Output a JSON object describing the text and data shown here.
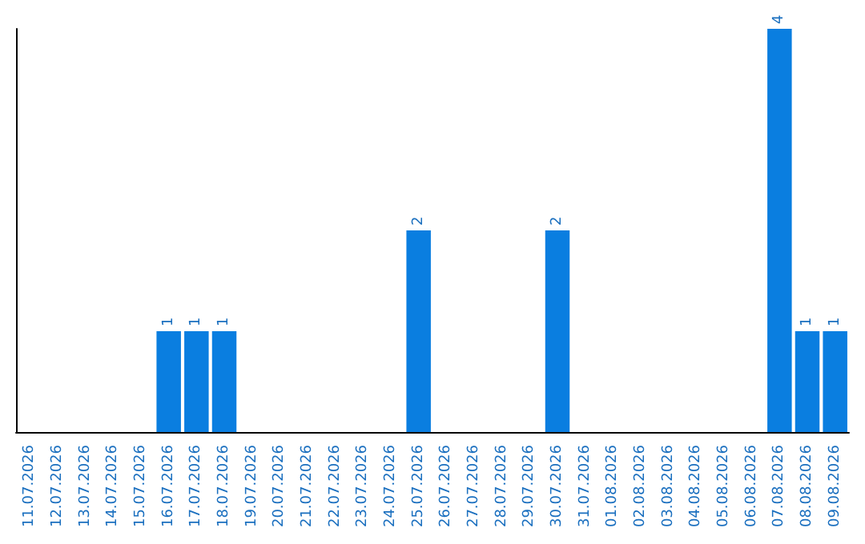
{
  "chart_data": {
    "type": "bar",
    "categories": [
      "11.07.2026",
      "12.07.2026",
      "13.07.2026",
      "14.07.2026",
      "15.07.2026",
      "16.07.2026",
      "17.07.2026",
      "18.07.2026",
      "19.07.2026",
      "20.07.2026",
      "21.07.2026",
      "22.07.2026",
      "23.07.2026",
      "24.07.2026",
      "25.07.2026",
      "26.07.2026",
      "27.07.2026",
      "28.07.2026",
      "29.07.2026",
      "30.07.2026",
      "31.07.2026",
      "01.08.2026",
      "02.08.2026",
      "03.08.2026",
      "04.08.2026",
      "05.08.2026",
      "06.08.2026",
      "07.08.2026",
      "08.08.2026",
      "09.08.2026"
    ],
    "values": [
      0,
      0,
      0,
      0,
      0,
      1,
      1,
      1,
      0,
      0,
      0,
      0,
      0,
      0,
      2,
      0,
      0,
      0,
      0,
      2,
      0,
      0,
      0,
      0,
      0,
      0,
      0,
      4,
      1,
      1
    ],
    "value_labels": [
      null,
      null,
      null,
      null,
      null,
      "1",
      "1",
      "1",
      null,
      null,
      null,
      null,
      null,
      null,
      "2",
      null,
      null,
      null,
      null,
      "2",
      null,
      null,
      null,
      null,
      null,
      null,
      null,
      "4",
      "1",
      "1"
    ],
    "color": "#0a7ee0",
    "grid": false
  }
}
